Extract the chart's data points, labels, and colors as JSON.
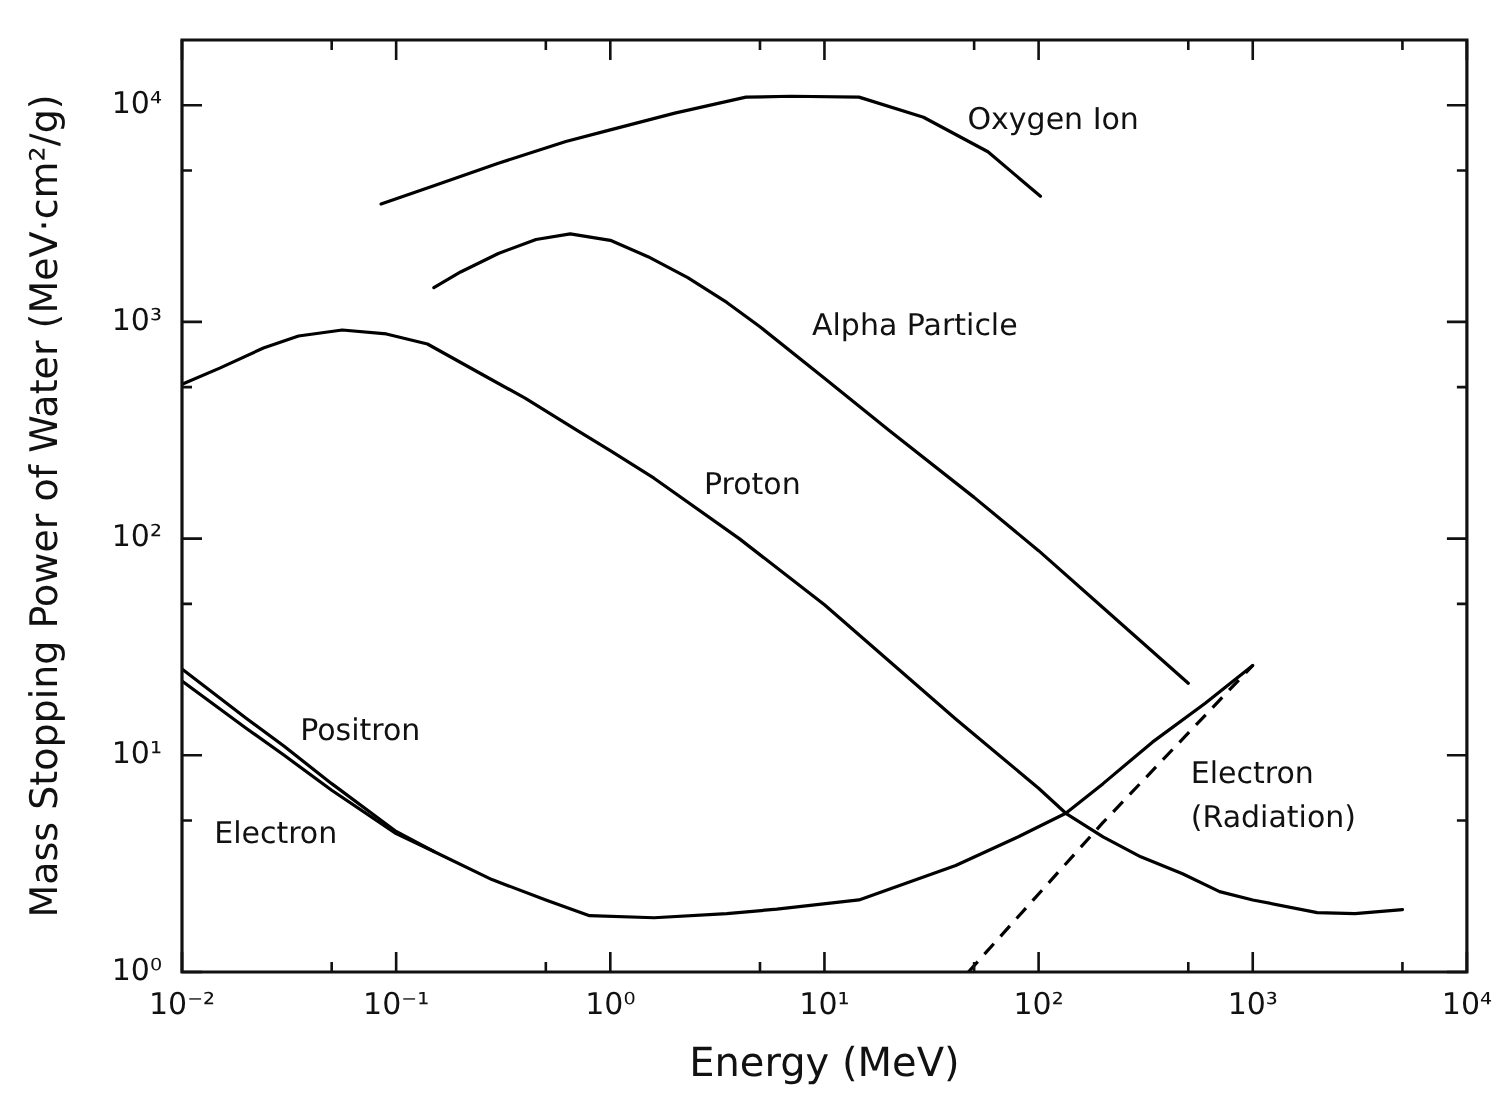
{
  "chart_data": {
    "type": "line",
    "xlabel": "Energy (MeV)",
    "ylabel": "Mass Stopping Power of Water (MeV·cm²/g)",
    "log": "xy",
    "xlim": [
      0.01,
      10000
    ],
    "ylim": [
      1,
      20000
    ],
    "xticks": [
      {
        "value": 0.01,
        "label": "10⁻²"
      },
      {
        "value": 0.05,
        "label": null
      },
      {
        "value": 0.1,
        "label": "10⁻¹"
      },
      {
        "value": 0.5,
        "label": null
      },
      {
        "value": 1,
        "label": "10⁰"
      },
      {
        "value": 5,
        "label": null
      },
      {
        "value": 10,
        "label": "10¹"
      },
      {
        "value": 50,
        "label": null
      },
      {
        "value": 100,
        "label": "10²"
      },
      {
        "value": 500,
        "label": null
      },
      {
        "value": 1000,
        "label": "10³"
      },
      {
        "value": 5000,
        "label": null
      },
      {
        "value": 10000,
        "label": "10⁴"
      }
    ],
    "yticks": [
      {
        "value": 1,
        "label": "10⁰"
      },
      {
        "value": 5,
        "label": null
      },
      {
        "value": 10,
        "label": "10¹"
      },
      {
        "value": 50,
        "label": null
      },
      {
        "value": 100,
        "label": "10²"
      },
      {
        "value": 500,
        "label": null
      },
      {
        "value": 1000,
        "label": "10³"
      },
      {
        "value": 5000,
        "label": null
      },
      {
        "value": 10000,
        "label": "10⁴"
      }
    ],
    "line_style": "solid",
    "series": [
      {
        "name": "Oxygen Ion",
        "color": "#000000",
        "x": [
          0.085,
          0.15,
          0.3,
          0.62,
          1,
          2,
          4.3,
          7,
          14.5,
          29,
          58,
          102
        ],
        "values": [
          3500,
          4250,
          5400,
          6800,
          7700,
          9200,
          10900,
          11000,
          10900,
          8800,
          6100,
          3800
        ]
      },
      {
        "name": "Alpha Particle",
        "color": "#000000",
        "x": [
          0.15,
          0.2,
          0.3,
          0.45,
          0.65,
          1,
          1.5,
          2.3,
          3.5,
          5,
          10,
          20,
          50,
          100,
          200,
          500
        ],
        "values": [
          1440,
          1700,
          2070,
          2400,
          2550,
          2380,
          2000,
          1600,
          1230,
          950,
          550,
          316,
          155,
          88,
          48,
          21.5
        ]
      },
      {
        "name": "Proton",
        "color": "#000000",
        "x": [
          0.01,
          0.015,
          0.024,
          0.035,
          0.056,
          0.09,
          0.14,
          0.25,
          0.4,
          0.7,
          1,
          1.6,
          4,
          10,
          41,
          100,
          134,
          200,
          300,
          470,
          700,
          1000,
          2000,
          3000,
          5000
        ],
        "values": [
          516,
          612,
          758,
          861,
          918,
          880,
          791,
          575,
          445,
          316,
          255,
          190,
          100,
          49.5,
          14.7,
          7.05,
          5.4,
          4.2,
          3.4,
          2.84,
          2.35,
          2.15,
          1.88,
          1.86,
          1.94
        ]
      },
      {
        "name": "Positron",
        "color": "#000000",
        "x": [
          0.01,
          0.02,
          0.03,
          0.05,
          0.1,
          0.15
        ],
        "values": [
          25,
          14.8,
          11,
          7.4,
          4.45,
          3.6
        ]
      },
      {
        "name": "Electron",
        "color": "#000000",
        "x": [
          0.01,
          0.02,
          0.03,
          0.05,
          0.1,
          0.15,
          0.28,
          0.5,
          0.8,
          1.6,
          3.5,
          6,
          14.5,
          41,
          80,
          134,
          200,
          340,
          600,
          1000
        ],
        "values": [
          22,
          13.3,
          10,
          6.9,
          4.35,
          3.6,
          2.67,
          2.15,
          1.82,
          1.78,
          1.86,
          1.95,
          2.15,
          3.1,
          4.2,
          5.4,
          7.4,
          11.5,
          17.4,
          26
        ]
      },
      {
        "name": "Electron (Radiation)",
        "color": "#000000",
        "line_style": "dashed",
        "x": [
          47,
          200,
          1000
        ],
        "values": [
          1.0,
          4.9,
          26
        ]
      }
    ]
  }
}
